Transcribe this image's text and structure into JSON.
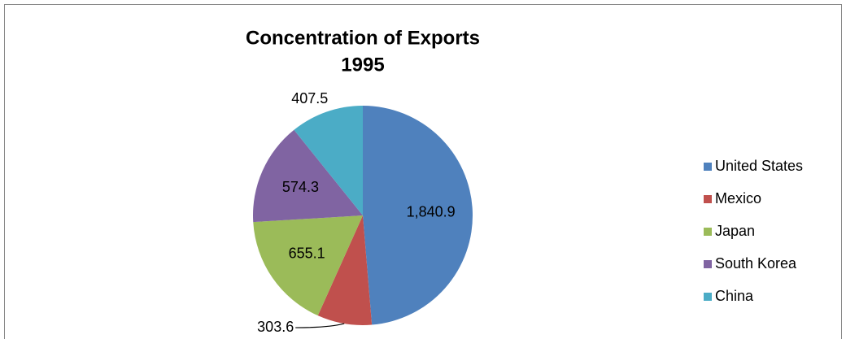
{
  "chart_data": {
    "type": "pie",
    "title": "Concentration of Exports",
    "subtitle": "1995",
    "categories": [
      "United States",
      "Mexico",
      "Japan",
      "South Korea",
      "China"
    ],
    "values": [
      1840.9,
      303.6,
      655.1,
      574.3,
      407.5
    ],
    "value_labels": [
      "1,840.9",
      "303.6",
      "655.1",
      "574.3",
      "407.5"
    ],
    "colors": [
      "#4f81bd",
      "#c0504d",
      "#9bbb59",
      "#8064a2",
      "#4bacc6"
    ],
    "legend": "right"
  }
}
